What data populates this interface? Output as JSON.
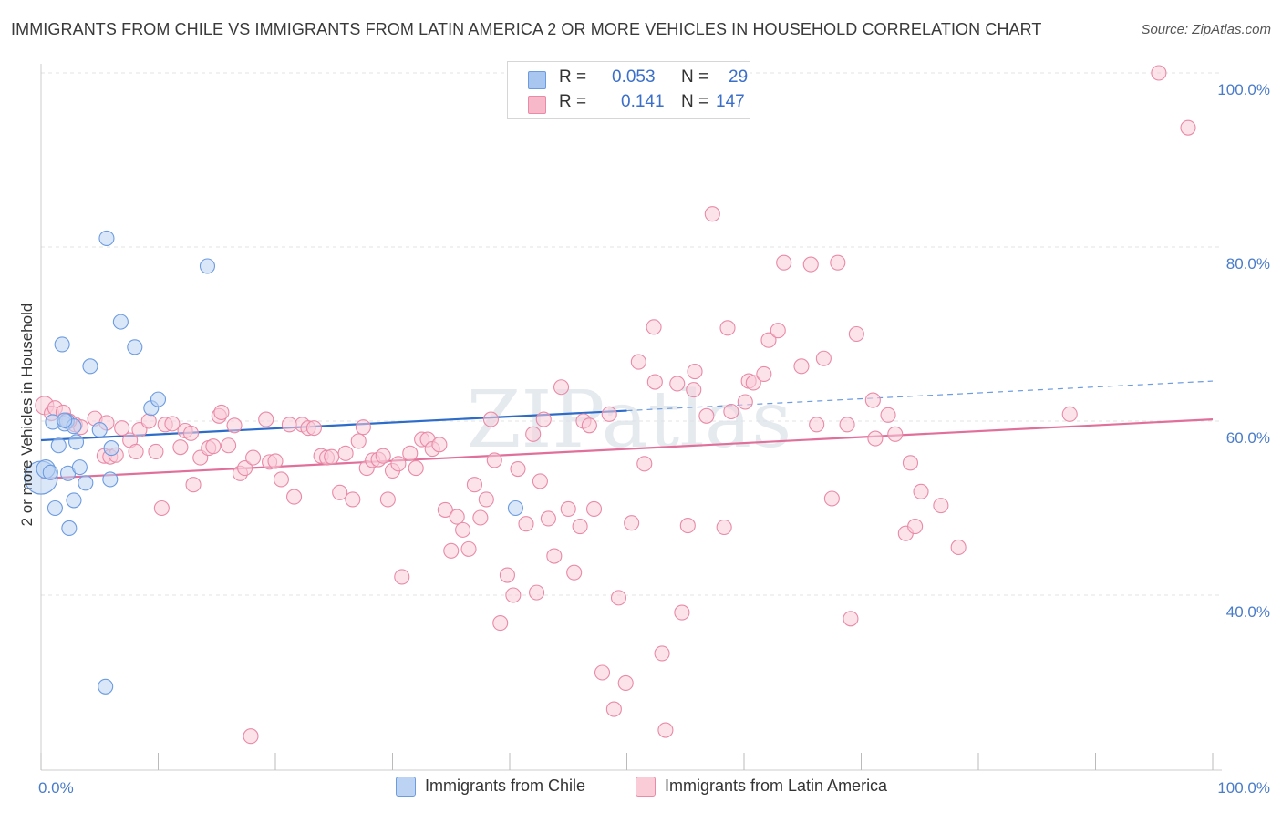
{
  "header": {
    "title": "IMMIGRANTS FROM CHILE VS IMMIGRANTS FROM LATIN AMERICA 2 OR MORE VEHICLES IN HOUSEHOLD CORRELATION CHART",
    "source": "Source: ZipAtlas.com"
  },
  "legend": {
    "rows": [
      {
        "r_label": "R =",
        "r_value": "0.053",
        "n_label": "N =",
        "n_value": "29",
        "color": "#a9c6f0",
        "border": "#6c9be0"
      },
      {
        "r_label": "R =",
        "r_value": "0.141",
        "n_label": "N =",
        "n_value": "147",
        "color": "#f7b8ca",
        "border": "#e98aa7"
      }
    ]
  },
  "bottom_legend": [
    {
      "label": "Immigrants from Chile",
      "color": "#bcd3f4",
      "border": "#6c9be0"
    },
    {
      "label": "Immigrants from Latin America",
      "color": "#f9ccd8",
      "border": "#e98aa7"
    }
  ],
  "watermark": "ZIPatlas",
  "chart_data": {
    "type": "scatter",
    "title": "IMMIGRANTS FROM CHILE VS IMMIGRANTS FROM LATIN AMERICA 2 OR MORE VEHICLES IN HOUSEHOLD CORRELATION CHART",
    "xlabel": "",
    "ylabel": "2 or more Vehicles in Household",
    "xlim": [
      0,
      100
    ],
    "ylim": [
      20,
      102
    ],
    "x_tick_labels": [
      "0.0%",
      "100.0%"
    ],
    "y_ticks": [
      40,
      60,
      80,
      100
    ],
    "y_tick_labels": [
      "40.0%",
      "60.0%",
      "80.0%",
      "100.0%"
    ],
    "grid": true,
    "series": [
      {
        "name": "Immigrants from Chile",
        "color": "#6c9be0",
        "fill": "#bcd3f4",
        "trend": {
          "x0": 0,
          "y0": 57.8,
          "x1": 50,
          "y1": 61.2,
          "dashed_to_x": 100,
          "dashed_to_y": 64.6
        },
        "points": [
          [
            0,
            53.5,
            18
          ],
          [
            0.4,
            54.5,
            10
          ],
          [
            0.8,
            54.1,
            8
          ],
          [
            1.0,
            59.9,
            8
          ],
          [
            1.5,
            57.2,
            8
          ],
          [
            1.8,
            68.8,
            8
          ],
          [
            2.0,
            59.7,
            8
          ],
          [
            2.2,
            60.0,
            8
          ],
          [
            1.2,
            50.0,
            8
          ],
          [
            2.3,
            54.0,
            8
          ],
          [
            2.4,
            47.7,
            8
          ],
          [
            2.8,
            59.4,
            8
          ],
          [
            2.8,
            50.9,
            8
          ],
          [
            3.0,
            57.6,
            8
          ],
          [
            3.3,
            54.7,
            8
          ],
          [
            3.8,
            52.9,
            8
          ],
          [
            4.2,
            66.3,
            8
          ],
          [
            5.0,
            59.0,
            8
          ],
          [
            5.5,
            29.5,
            8
          ],
          [
            5.6,
            81.0,
            8
          ],
          [
            5.9,
            53.3,
            8
          ],
          [
            6.0,
            56.9,
            8
          ],
          [
            6.8,
            71.4,
            8
          ],
          [
            8.0,
            68.5,
            8
          ],
          [
            9.4,
            61.5,
            8
          ],
          [
            10.0,
            62.5,
            8
          ],
          [
            14.2,
            77.8,
            8
          ],
          [
            40.5,
            50.0,
            8
          ],
          [
            2.0,
            60.1,
            8
          ]
        ]
      },
      {
        "name": "Immigrants from Latin America",
        "color": "#e98aa7",
        "fill": "#f9ccd8",
        "trend": {
          "x0": 0,
          "y0": 53.4,
          "x1": 100,
          "y1": 60.2
        },
        "points": [
          [
            0.3,
            61.8,
            10
          ],
          [
            0.9,
            60.9,
            8
          ],
          [
            1.2,
            61.5,
            8
          ],
          [
            1.9,
            61.0,
            8
          ],
          [
            2.2,
            60.1,
            8
          ],
          [
            2.9,
            59.6,
            8
          ],
          [
            3.4,
            59.3,
            8
          ],
          [
            4.6,
            60.3,
            8
          ],
          [
            5.4,
            56.0,
            8
          ],
          [
            5.6,
            59.8,
            8
          ],
          [
            5.9,
            55.9,
            8
          ],
          [
            6.4,
            56.1,
            8
          ],
          [
            6.9,
            59.2,
            8
          ],
          [
            7.6,
            57.8,
            8
          ],
          [
            8.1,
            56.5,
            8
          ],
          [
            8.4,
            59.0,
            8
          ],
          [
            9.2,
            60.0,
            8
          ],
          [
            9.8,
            56.5,
            8
          ],
          [
            10.3,
            50.0,
            8
          ],
          [
            10.6,
            59.6,
            8
          ],
          [
            11.2,
            59.7,
            8
          ],
          [
            11.9,
            57.0,
            8
          ],
          [
            12.3,
            58.9,
            8
          ],
          [
            12.8,
            58.6,
            8
          ],
          [
            13.0,
            52.7,
            8
          ],
          [
            13.6,
            55.8,
            8
          ],
          [
            14.3,
            56.9,
            8
          ],
          [
            14.7,
            57.1,
            8
          ],
          [
            15.2,
            60.6,
            8
          ],
          [
            15.4,
            61.0,
            8
          ],
          [
            16.0,
            57.2,
            8
          ],
          [
            16.5,
            59.5,
            8
          ],
          [
            17.0,
            54.0,
            8
          ],
          [
            17.4,
            54.6,
            8
          ],
          [
            17.9,
            23.8,
            8
          ],
          [
            18.1,
            55.8,
            8
          ],
          [
            19.2,
            60.2,
            8
          ],
          [
            19.5,
            55.3,
            8
          ],
          [
            20.0,
            55.4,
            8
          ],
          [
            20.5,
            53.3,
            8
          ],
          [
            21.2,
            59.6,
            8
          ],
          [
            21.6,
            51.3,
            8
          ],
          [
            22.3,
            59.6,
            8
          ],
          [
            22.8,
            59.2,
            8
          ],
          [
            23.3,
            59.2,
            8
          ],
          [
            23.9,
            56.0,
            8
          ],
          [
            24.4,
            55.8,
            8
          ],
          [
            24.8,
            55.9,
            8
          ],
          [
            25.5,
            51.8,
            8
          ],
          [
            26.0,
            56.3,
            8
          ],
          [
            26.6,
            51.0,
            8
          ],
          [
            27.1,
            57.7,
            8
          ],
          [
            27.5,
            59.3,
            8
          ],
          [
            27.8,
            54.6,
            8
          ],
          [
            28.3,
            55.5,
            8
          ],
          [
            28.8,
            55.6,
            8
          ],
          [
            29.2,
            56.0,
            8
          ],
          [
            29.6,
            51.0,
            8
          ],
          [
            30.0,
            54.3,
            8
          ],
          [
            30.5,
            55.1,
            8
          ],
          [
            30.8,
            42.1,
            8
          ],
          [
            31.5,
            56.3,
            8
          ],
          [
            32.0,
            54.6,
            8
          ],
          [
            32.5,
            57.9,
            8
          ],
          [
            33.0,
            57.9,
            8
          ],
          [
            33.4,
            56.8,
            8
          ],
          [
            34.0,
            57.3,
            8
          ],
          [
            34.5,
            49.8,
            8
          ],
          [
            35.0,
            45.1,
            8
          ],
          [
            35.5,
            49.0,
            8
          ],
          [
            36.0,
            47.5,
            8
          ],
          [
            36.5,
            45.3,
            8
          ],
          [
            37.0,
            52.7,
            8
          ],
          [
            37.5,
            48.9,
            8
          ],
          [
            38.0,
            51.0,
            8
          ],
          [
            38.4,
            60.2,
            8
          ],
          [
            38.7,
            55.5,
            8
          ],
          [
            39.2,
            36.8,
            8
          ],
          [
            39.8,
            42.3,
            8
          ],
          [
            40.3,
            40.0,
            8
          ],
          [
            40.7,
            54.5,
            8
          ],
          [
            41.4,
            48.2,
            8
          ],
          [
            42.0,
            58.5,
            8
          ],
          [
            42.3,
            40.3,
            8
          ],
          [
            42.6,
            53.1,
            8
          ],
          [
            42.9,
            60.2,
            8
          ],
          [
            43.3,
            48.8,
            8
          ],
          [
            43.8,
            44.5,
            8
          ],
          [
            44.4,
            63.9,
            8
          ],
          [
            45.0,
            49.9,
            8
          ],
          [
            45.5,
            42.6,
            8
          ],
          [
            46.0,
            47.9,
            8
          ],
          [
            46.3,
            60.0,
            8
          ],
          [
            46.8,
            59.5,
            8
          ],
          [
            47.2,
            49.9,
            8
          ],
          [
            47.9,
            31.1,
            8
          ],
          [
            48.5,
            60.8,
            8
          ],
          [
            48.9,
            26.9,
            8
          ],
          [
            49.3,
            39.7,
            8
          ],
          [
            49.9,
            29.9,
            8
          ],
          [
            50.4,
            48.3,
            8
          ],
          [
            51.0,
            66.8,
            8
          ],
          [
            51.5,
            55.1,
            8
          ],
          [
            52.3,
            70.8,
            8
          ],
          [
            52.4,
            64.5,
            8
          ],
          [
            53.0,
            33.3,
            8
          ],
          [
            53.3,
            24.5,
            8
          ],
          [
            54.3,
            64.3,
            8
          ],
          [
            54.7,
            38.0,
            8
          ],
          [
            55.2,
            48.0,
            8
          ],
          [
            55.8,
            65.7,
            8
          ],
          [
            55.7,
            63.6,
            8
          ],
          [
            56.8,
            60.6,
            8
          ],
          [
            57.3,
            83.8,
            8
          ],
          [
            58.3,
            47.8,
            8
          ],
          [
            58.6,
            70.7,
            8
          ],
          [
            58.9,
            61.1,
            8
          ],
          [
            60.1,
            62.2,
            8
          ],
          [
            60.4,
            64.6,
            8
          ],
          [
            60.8,
            64.4,
            8
          ],
          [
            61.7,
            65.4,
            8
          ],
          [
            62.1,
            69.3,
            8
          ],
          [
            62.9,
            70.4,
            8
          ],
          [
            63.4,
            78.2,
            8
          ],
          [
            64.9,
            66.3,
            8
          ],
          [
            65.7,
            78.0,
            8
          ],
          [
            66.2,
            59.6,
            8
          ],
          [
            66.8,
            67.2,
            8
          ],
          [
            67.5,
            51.1,
            8
          ],
          [
            68.0,
            78.2,
            8
          ],
          [
            68.8,
            59.6,
            8
          ],
          [
            69.1,
            37.3,
            8
          ],
          [
            69.6,
            70.0,
            8
          ],
          [
            71.0,
            62.4,
            8
          ],
          [
            71.2,
            58.0,
            8
          ],
          [
            72.3,
            60.7,
            8
          ],
          [
            72.9,
            58.5,
            8
          ],
          [
            73.8,
            47.1,
            8
          ],
          [
            74.2,
            55.2,
            8
          ],
          [
            74.6,
            47.9,
            8
          ],
          [
            75.1,
            51.9,
            8
          ],
          [
            76.8,
            50.3,
            8
          ],
          [
            78.3,
            45.5,
            8
          ],
          [
            87.8,
            60.8,
            8
          ],
          [
            95.4,
            100.0,
            8
          ],
          [
            97.9,
            93.7,
            8
          ],
          [
            2.4,
            60.0,
            8
          ]
        ]
      }
    ]
  }
}
